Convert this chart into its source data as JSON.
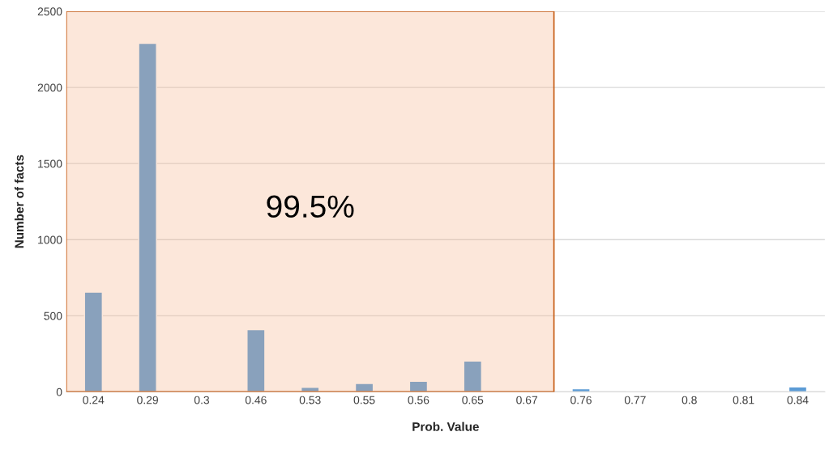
{
  "chart_data": {
    "type": "bar",
    "xlabel": "Prob. Value",
    "ylabel": "Number of facts",
    "categories": [
      "0.24",
      "0.29",
      "0.3",
      "0.46",
      "0.53",
      "0.55",
      "0.56",
      "0.65",
      "0.67",
      "0.76",
      "0.77",
      "0.8",
      "0.81",
      "0.84"
    ],
    "values": [
      655,
      2290,
      3,
      408,
      30,
      55,
      70,
      203,
      3,
      20,
      1,
      1,
      3,
      33
    ],
    "color": "#5b9bd5",
    "ylim": [
      0,
      2500
    ],
    "yticks": [
      0,
      500,
      1000,
      1500,
      2000,
      2500
    ],
    "grid": "y",
    "bands": [
      {
        "axis": "x",
        "from": "0.24",
        "to": "0.67",
        "label": "99.5%",
        "color": "#f4b183"
      }
    ]
  }
}
